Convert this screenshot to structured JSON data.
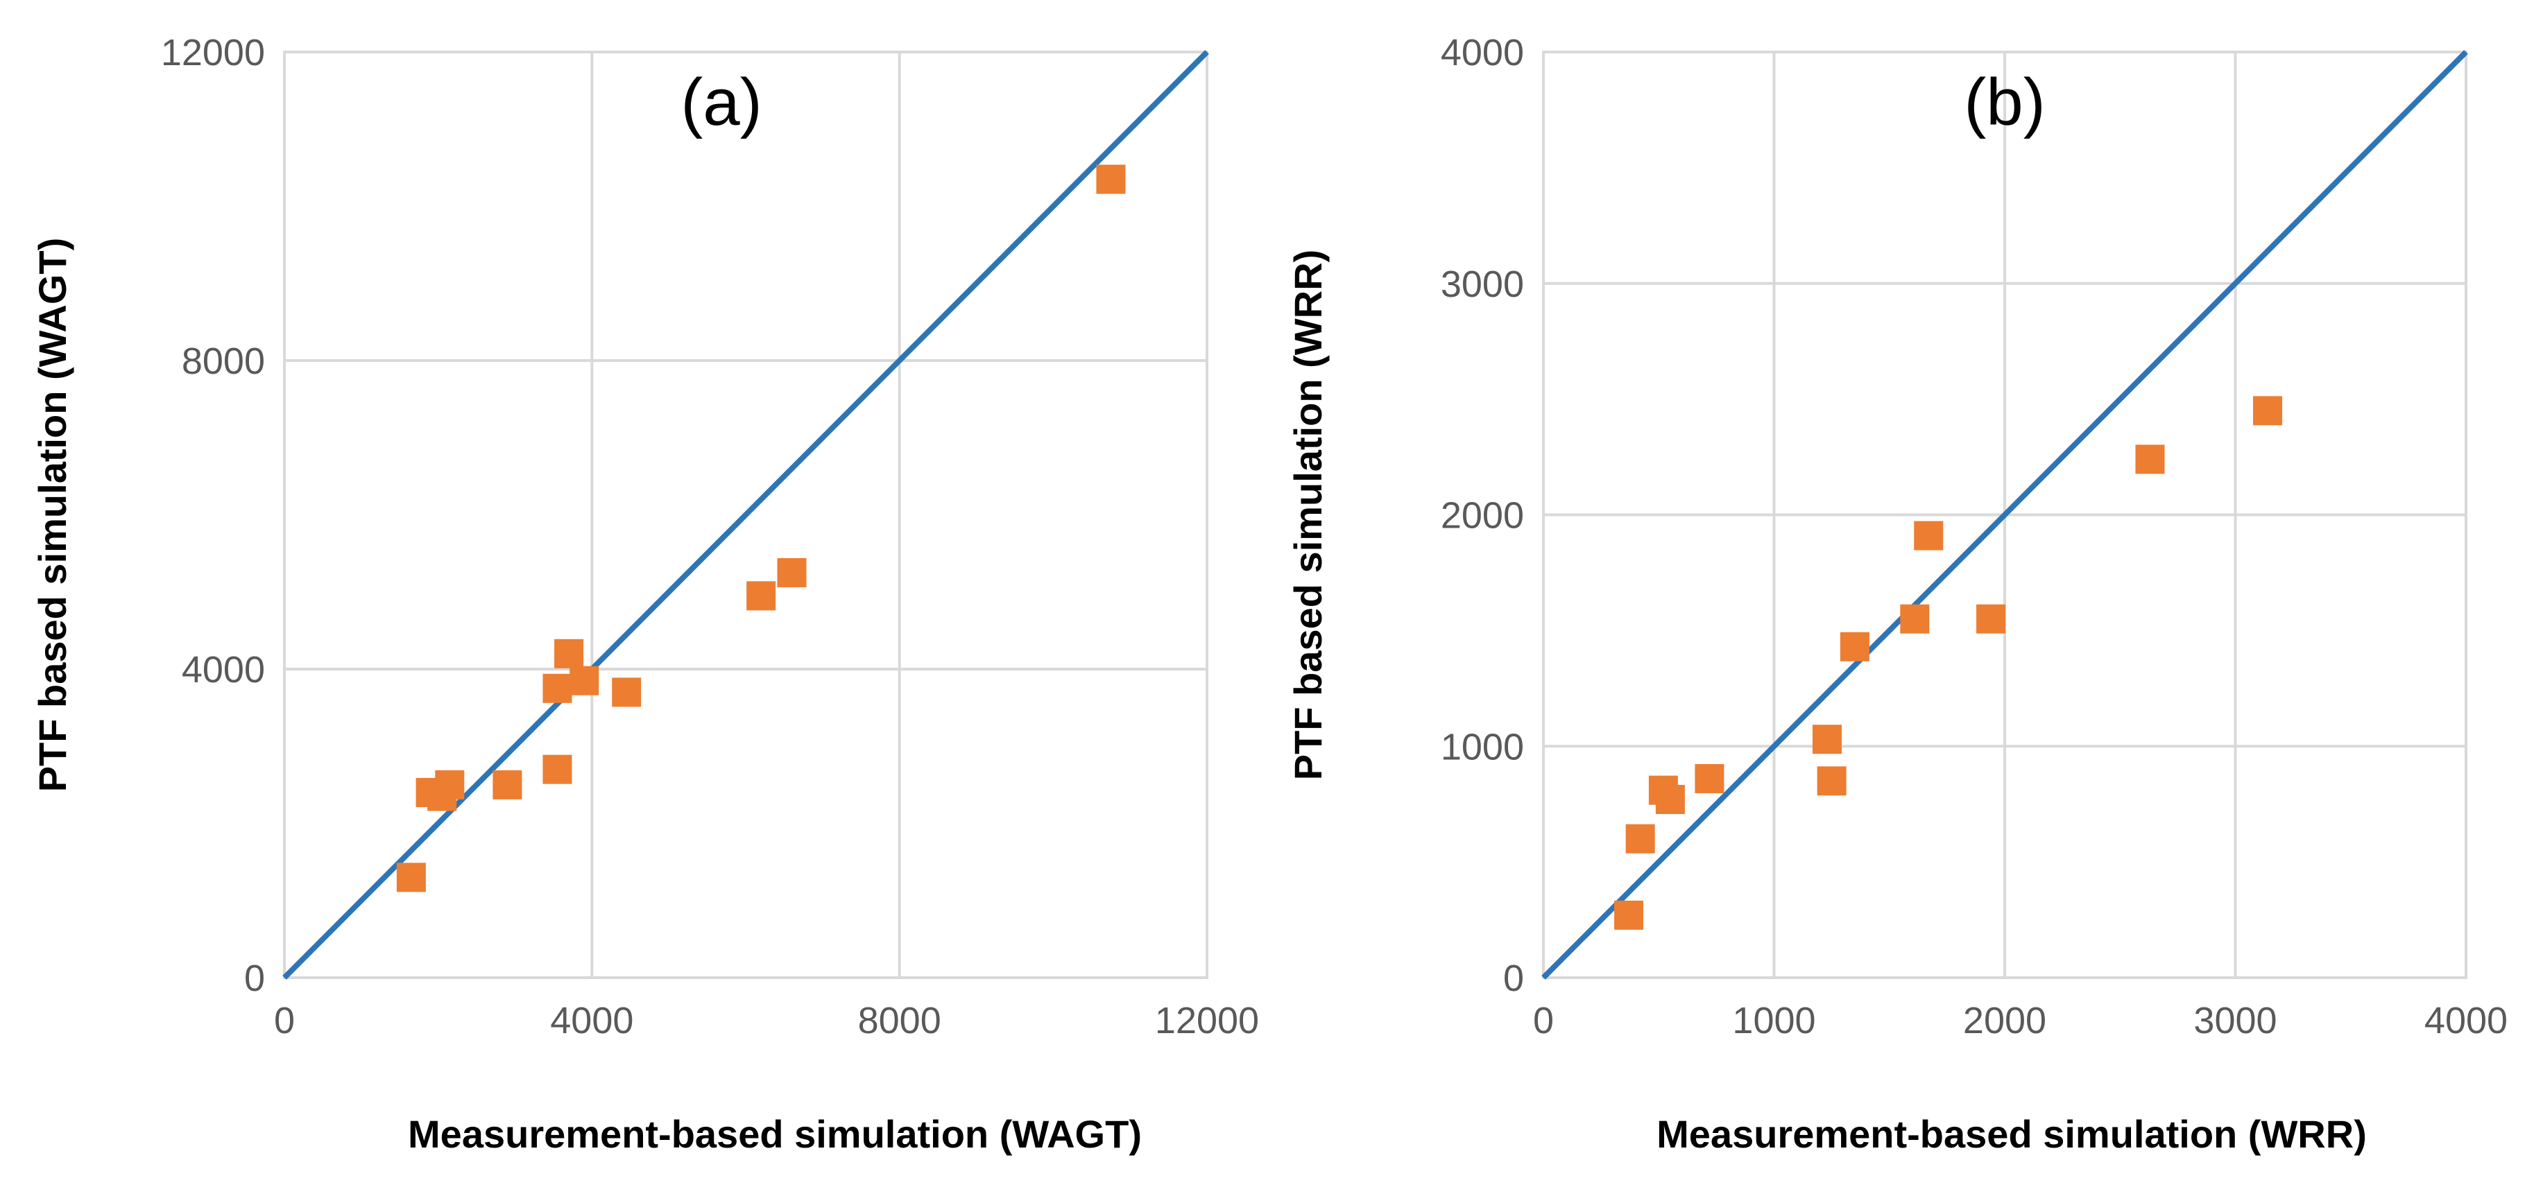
{
  "chart_data": [
    {
      "type": "scatter",
      "panel_label": "(a)",
      "xlabel": "Measurement-based simulation (WAGT)",
      "ylabel": "PTF based simulation (WAGT)",
      "xlim": [
        0,
        12000
      ],
      "ylim": [
        0,
        12000
      ],
      "xticks": [
        0,
        4000,
        8000,
        12000
      ],
      "yticks": [
        0,
        4000,
        8000,
        12000
      ],
      "grid": true,
      "reference_line": {
        "name": "1:1 line",
        "color": "#2e75b6",
        "x": [
          0,
          12000
        ],
        "y": [
          0,
          12000
        ]
      },
      "series": [
        {
          "name": "simulations",
          "marker": "square",
          "color": "#ed7d31",
          "points": [
            {
              "x": 1650,
              "y": 1300
            },
            {
              "x": 1900,
              "y": 2400
            },
            {
              "x": 2050,
              "y": 2350
            },
            {
              "x": 2150,
              "y": 2500
            },
            {
              "x": 2900,
              "y": 2500
            },
            {
              "x": 3550,
              "y": 2700
            },
            {
              "x": 3550,
              "y": 3750
            },
            {
              "x": 3700,
              "y": 4200
            },
            {
              "x": 3900,
              "y": 3850
            },
            {
              "x": 4450,
              "y": 3700
            },
            {
              "x": 6200,
              "y": 4950
            },
            {
              "x": 6600,
              "y": 5250
            },
            {
              "x": 10750,
              "y": 10350
            }
          ]
        }
      ]
    },
    {
      "type": "scatter",
      "panel_label": "(b)",
      "xlabel": "Measurement-based simulation (WRR)",
      "ylabel": "PTF based simulation (WRR)",
      "xlim": [
        0,
        4000
      ],
      "ylim": [
        0,
        4000
      ],
      "xticks": [
        0,
        1000,
        2000,
        3000,
        4000
      ],
      "yticks": [
        0,
        1000,
        2000,
        3000,
        4000
      ],
      "grid": true,
      "reference_line": {
        "name": "1:1 line",
        "color": "#2e75b6",
        "x": [
          0,
          4000
        ],
        "y": [
          0,
          4000
        ]
      },
      "series": [
        {
          "name": "simulations",
          "marker": "square",
          "color": "#ed7d31",
          "points": [
            {
              "x": 370,
              "y": 270
            },
            {
              "x": 420,
              "y": 600
            },
            {
              "x": 520,
              "y": 810
            },
            {
              "x": 550,
              "y": 770
            },
            {
              "x": 720,
              "y": 860
            },
            {
              "x": 1230,
              "y": 1030
            },
            {
              "x": 1250,
              "y": 850
            },
            {
              "x": 1350,
              "y": 1430
            },
            {
              "x": 1610,
              "y": 1550
            },
            {
              "x": 1670,
              "y": 1910
            },
            {
              "x": 1940,
              "y": 1550
            },
            {
              "x": 2630,
              "y": 2240
            },
            {
              "x": 3140,
              "y": 2450
            }
          ]
        }
      ]
    }
  ]
}
